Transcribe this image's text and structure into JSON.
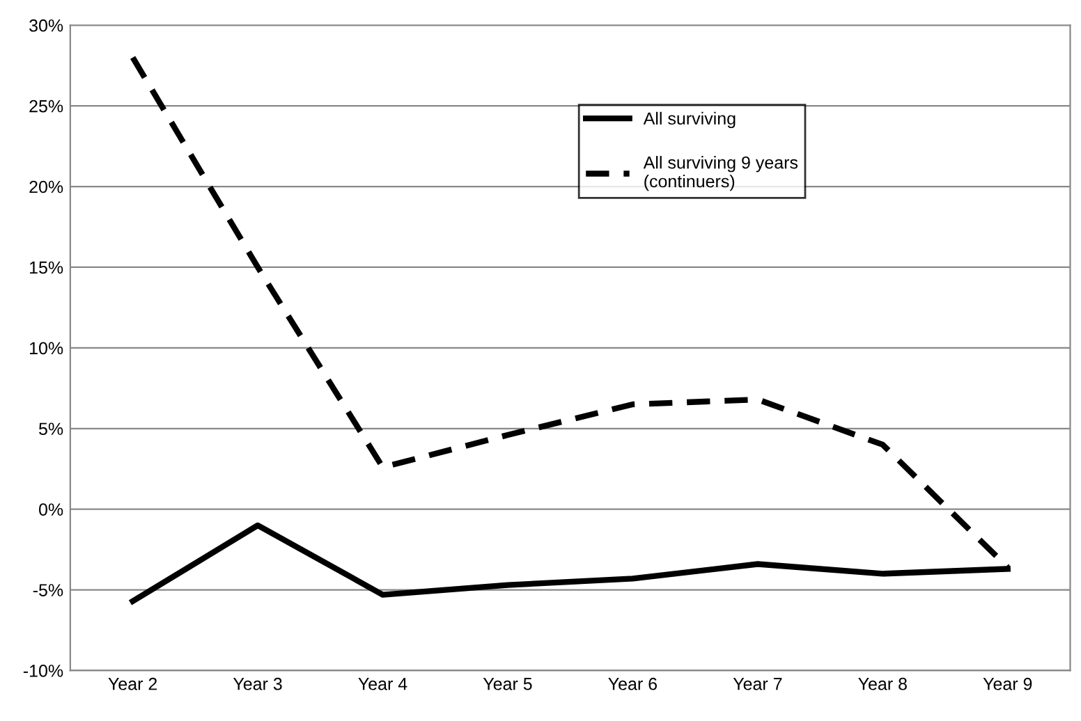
{
  "chart_data": {
    "type": "line",
    "categories": [
      "Year 2",
      "Year 3",
      "Year 4",
      "Year 5",
      "Year 6",
      "Year 7",
      "Year 8",
      "Year 9"
    ],
    "series": [
      {
        "name": "All surviving",
        "color": "#000000",
        "line_style": "solid",
        "values": [
          -5.7,
          -1.0,
          -5.3,
          -4.7,
          -4.3,
          -3.4,
          -4.0,
          -3.7
        ]
      },
      {
        "name": "All surviving 9 years\n(continuers)",
        "color": "#000000",
        "line_style": "dashed",
        "values": [
          28,
          15,
          2.6,
          4.6,
          6.5,
          6.8,
          4.0,
          -3.6
        ]
      }
    ],
    "ylim": [
      -10,
      30
    ],
    "yticks": [
      {
        "value": -10,
        "label": "-10%"
      },
      {
        "value": -5,
        "label": "-5%"
      },
      {
        "value": 0,
        "label": "0%"
      },
      {
        "value": 5,
        "label": "5%"
      },
      {
        "value": 10,
        "label": "10%"
      },
      {
        "value": 15,
        "label": "15%"
      },
      {
        "value": 20,
        "label": "20%"
      },
      {
        "value": 25,
        "label": "25%"
      },
      {
        "value": 30,
        "label": "30%"
      }
    ],
    "grid": "y",
    "legend": "top right",
    "marker": "none"
  }
}
